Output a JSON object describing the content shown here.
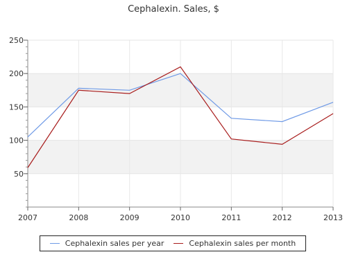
{
  "chart_data": {
    "type": "line",
    "title": "Cephalexin. Sales, $",
    "xlabel": "",
    "ylabel": "",
    "categories": [
      "2007",
      "2008",
      "2009",
      "2010",
      "2011",
      "2012",
      "2013"
    ],
    "ylim": [
      0,
      250
    ],
    "yticks": [
      50,
      100,
      150,
      200,
      250
    ],
    "grid": true,
    "legend_position": "bottom",
    "series": [
      {
        "name": "Cephalexin sales per year",
        "color": "#6f9ae6",
        "values": [
          105,
          178,
          175,
          200,
          133,
          128,
          157
        ]
      },
      {
        "name": "Cephalexin sales per month",
        "color": "#a81c1c",
        "values": [
          59,
          175,
          170,
          210,
          102,
          94,
          140
        ]
      }
    ]
  }
}
